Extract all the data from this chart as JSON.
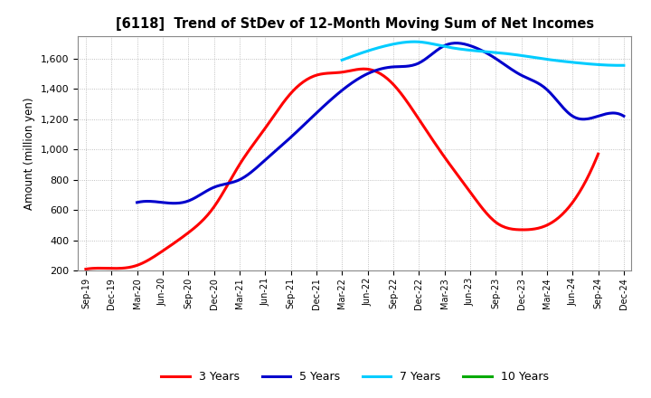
{
  "title": "[6118]  Trend of StDev of 12-Month Moving Sum of Net Incomes",
  "ylabel": "Amount (million yen)",
  "background_color": "#ffffff",
  "grid_color": "#b0b0b0",
  "xlabels": [
    "Sep-19",
    "Dec-19",
    "Mar-20",
    "Jun-20",
    "Sep-20",
    "Dec-20",
    "Mar-21",
    "Jun-21",
    "Sep-21",
    "Dec-21",
    "Mar-22",
    "Jun-22",
    "Sep-22",
    "Dec-22",
    "Mar-23",
    "Jun-23",
    "Sep-23",
    "Dec-23",
    "Mar-24",
    "Jun-24",
    "Sep-24",
    "Dec-24"
  ],
  "ylim": [
    200,
    1750
  ],
  "yticks": [
    200,
    400,
    600,
    800,
    1000,
    1200,
    1400,
    1600
  ],
  "series": [
    {
      "label": "3 Years",
      "color": "#ff0000",
      "data_x": [
        0,
        1,
        2,
        3,
        4,
        5,
        6,
        7,
        8,
        9,
        10,
        11,
        12,
        13,
        14,
        15,
        16,
        17,
        18,
        19,
        20
      ],
      "data_y": [
        210,
        215,
        235,
        330,
        450,
        620,
        900,
        1140,
        1370,
        1490,
        1510,
        1530,
        1430,
        1200,
        950,
        720,
        520,
        470,
        500,
        650,
        970
      ]
    },
    {
      "label": "5 Years",
      "color": "#0000cc",
      "data_x": [
        2,
        3,
        4,
        5,
        6,
        7,
        8,
        9,
        10,
        11,
        12,
        13,
        14,
        15,
        16,
        17,
        18,
        19,
        20,
        21
      ],
      "data_y": [
        650,
        650,
        660,
        750,
        800,
        930,
        1080,
        1240,
        1390,
        1500,
        1545,
        1570,
        1685,
        1685,
        1600,
        1490,
        1395,
        1220,
        1220,
        1220
      ]
    },
    {
      "label": "7 Years",
      "color": "#00ccff",
      "data_x": [
        10,
        11,
        12,
        13,
        14,
        15,
        16,
        17,
        18,
        19,
        20,
        21
      ],
      "data_y": [
        1590,
        1650,
        1695,
        1710,
        1680,
        1655,
        1640,
        1620,
        1595,
        1575,
        1560,
        1555
      ]
    },
    {
      "label": "10 Years",
      "color": "#00aa00",
      "data_x": [],
      "data_y": []
    }
  ],
  "legend_labels": [
    "3 Years",
    "5 Years",
    "7 Years",
    "10 Years"
  ],
  "legend_colors": [
    "#ff0000",
    "#0000cc",
    "#00ccff",
    "#00aa00"
  ]
}
